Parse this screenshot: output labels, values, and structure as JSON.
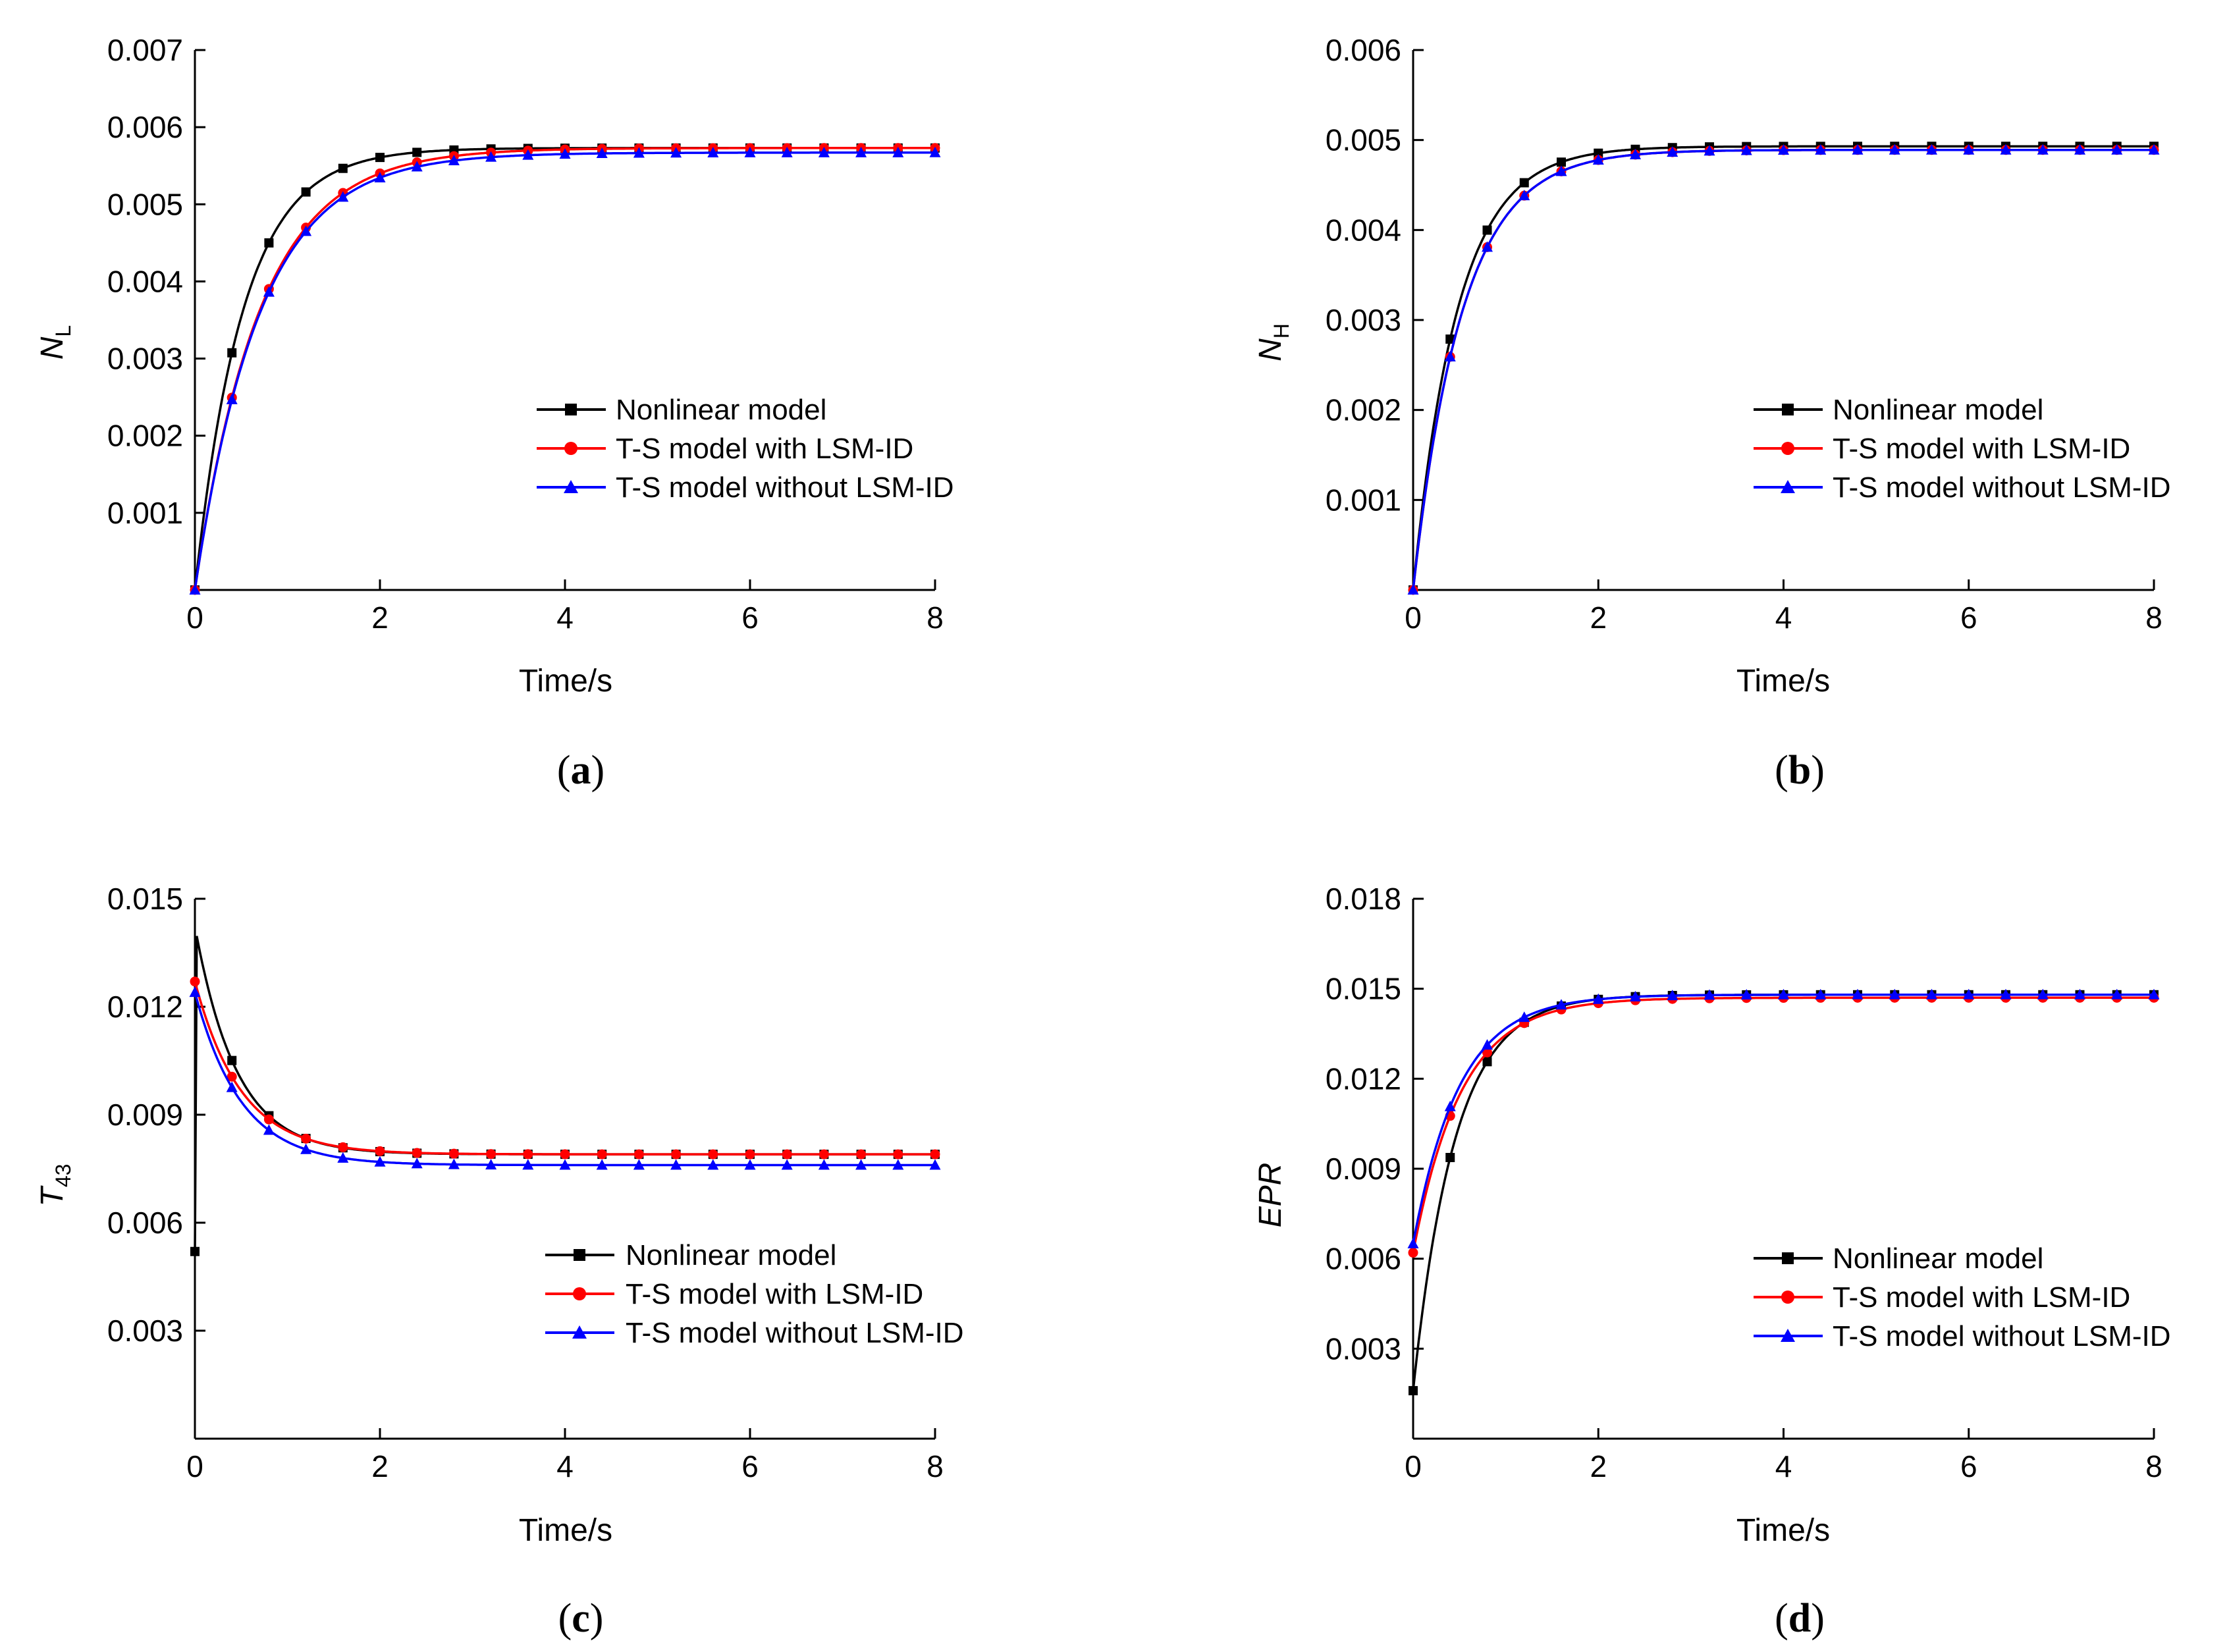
{
  "figure": {
    "captions": [
      "(a)",
      "(b)",
      "(c)",
      "(d)"
    ]
  },
  "legend_labels": [
    "Nonlinear model",
    "T-S model with LSM-ID",
    "T-S model without LSM-ID"
  ],
  "colors": {
    "nonlinear": "#000000",
    "with_lsm": "#ff0000",
    "without_lsm": "#0000ff"
  },
  "chart_data": [
    {
      "id": "a",
      "type": "line",
      "caption": "(a)",
      "xlabel": "Time/s",
      "ylabel_main": "N",
      "ylabel_sub": "L",
      "xlim": [
        0,
        8
      ],
      "ylim": [
        0,
        0.007
      ],
      "xticks": [
        0,
        2,
        4,
        6,
        8
      ],
      "yticks": [
        0.001,
        0.002,
        0.003,
        0.004,
        0.005,
        0.006,
        0.007
      ],
      "ytick_labels": [
        "0.001",
        "0.002",
        "0.003",
        "0.004",
        "0.005",
        "0.006",
        "0.007"
      ],
      "legend": [
        "Nonlinear model",
        "T-S model with LSM-ID",
        "T-S model without LSM-ID"
      ],
      "series": [
        {
          "name": "Nonlinear model",
          "color": "#000000",
          "marker": "square",
          "model": {
            "kind": "exp",
            "y0": 0,
            "yinf": 0.00573,
            "tau": 0.52
          }
        },
        {
          "name": "T-S model with LSM-ID",
          "color": "#ff0000",
          "marker": "circle",
          "model": {
            "kind": "exp",
            "y0": 0,
            "yinf": 0.00573,
            "tau": 0.7
          }
        },
        {
          "name": "T-S model without LSM-ID",
          "color": "#0000ff",
          "marker": "triangle",
          "model": {
            "kind": "exp",
            "y0": 0,
            "yinf": 0.00567,
            "tau": 0.7
          }
        }
      ]
    },
    {
      "id": "b",
      "type": "line",
      "caption": "(b)",
      "xlabel": "Time/s",
      "ylabel_main": "N",
      "ylabel_sub": "H",
      "xlim": [
        0,
        8
      ],
      "ylim": [
        0,
        0.006
      ],
      "xticks": [
        0,
        2,
        4,
        6,
        8
      ],
      "yticks": [
        0.001,
        0.002,
        0.003,
        0.004,
        0.005,
        0.006
      ],
      "ytick_labels": [
        "0.001",
        "0.002",
        "0.003",
        "0.004",
        "0.005",
        "0.006"
      ],
      "legend": [
        "Nonlinear model",
        "T-S model with LSM-ID",
        "T-S model without LSM-ID"
      ],
      "series": [
        {
          "name": "Nonlinear model",
          "color": "#000000",
          "marker": "square",
          "model": {
            "kind": "exp",
            "y0": 0,
            "yinf": 0.00493,
            "tau": 0.48
          }
        },
        {
          "name": "T-S model with LSM-ID",
          "color": "#ff0000",
          "marker": "circle",
          "model": {
            "kind": "exp",
            "y0": 0,
            "yinf": 0.00489,
            "tau": 0.53
          }
        },
        {
          "name": "T-S model without LSM-ID",
          "color": "#0000ff",
          "marker": "triangle",
          "model": {
            "kind": "exp",
            "y0": 0,
            "yinf": 0.00489,
            "tau": 0.53
          }
        }
      ]
    },
    {
      "id": "c",
      "type": "line",
      "caption": "(c)",
      "xlabel": "Time/s",
      "ylabel_main": "T",
      "ylabel_sub": "43",
      "xlim": [
        0,
        8
      ],
      "ylim": [
        0,
        0.015
      ],
      "xticks": [
        0,
        2,
        4,
        6,
        8
      ],
      "yticks": [
        0.003,
        0.006,
        0.009,
        0.012,
        0.015
      ],
      "ytick_labels": [
        "0.003",
        "0.006",
        "0.009",
        "0.012",
        "0.015"
      ],
      "legend": [
        "Nonlinear model",
        "T-S model with LSM-ID",
        "T-S model without LSM-ID"
      ],
      "series": [
        {
          "name": "Nonlinear model",
          "color": "#000000",
          "marker": "square",
          "model": {
            "kind": "spike",
            "start": 0.0052,
            "peak": 0.0141,
            "t_peak": 0.01,
            "yinf": 0.0079,
            "tau": 0.45
          }
        },
        {
          "name": "T-S model with LSM-ID",
          "color": "#ff0000",
          "marker": "circle",
          "model": {
            "kind": "exp",
            "y0": 0.0127,
            "yinf": 0.0079,
            "tau": 0.5
          }
        },
        {
          "name": "T-S model without LSM-ID",
          "color": "#0000ff",
          "marker": "triangle",
          "model": {
            "kind": "exp",
            "y0": 0.0124,
            "yinf": 0.0076,
            "tau": 0.5
          }
        }
      ]
    },
    {
      "id": "d",
      "type": "line",
      "caption": "(d)",
      "xlabel": "Time/s",
      "ylabel_main": "EPR",
      "ylabel_sub": "",
      "ylabel_italic": true,
      "xlim": [
        0,
        8
      ],
      "ylim": [
        0,
        0.018
      ],
      "xticks": [
        0,
        2,
        4,
        6,
        8
      ],
      "yticks": [
        0.003,
        0.006,
        0.009,
        0.012,
        0.015,
        0.018
      ],
      "ytick_labels": [
        "0.003",
        "0.006",
        "0.009",
        "0.012",
        "0.015",
        "0.018"
      ],
      "legend": [
        "Nonlinear model",
        "T-S model with LSM-ID",
        "T-S model without LSM-ID"
      ],
      "series": [
        {
          "name": "Nonlinear model",
          "color": "#000000",
          "marker": "square",
          "model": {
            "kind": "exp",
            "y0": 0.0016,
            "yinf": 0.0148,
            "tau": 0.45
          }
        },
        {
          "name": "T-S model with LSM-ID",
          "color": "#ff0000",
          "marker": "circle",
          "model": {
            "kind": "exp",
            "y0": 0.0062,
            "yinf": 0.0147,
            "tau": 0.52
          }
        },
        {
          "name": "T-S model without LSM-ID",
          "color": "#0000ff",
          "marker": "triangle",
          "model": {
            "kind": "exp",
            "y0": 0.0065,
            "yinf": 0.0148,
            "tau": 0.5
          }
        }
      ]
    }
  ]
}
